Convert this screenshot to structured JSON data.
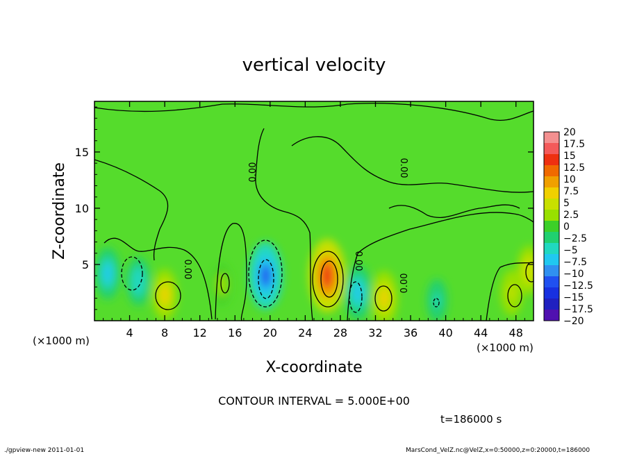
{
  "chart_data": {
    "type": "heatmap",
    "title": "vertical velocity",
    "xlabel": "X-coordinate",
    "ylabel": "Z-coordinate",
    "x_unit_left": "(×1000 m)",
    "x_unit_right": "(×1000 m)",
    "xlim": [
      0,
      50
    ],
    "ylim": [
      0,
      19.5
    ],
    "x_ticks": [
      4,
      8,
      12,
      16,
      20,
      24,
      28,
      32,
      36,
      40,
      44,
      48
    ],
    "y_ticks": [
      5,
      10,
      15
    ],
    "colorbar": {
      "range": [
        -20,
        20
      ],
      "levels": [
        "20",
        "17.5",
        "15",
        "12.5",
        "10",
        "7.5",
        "5",
        "2.5",
        "0",
        "−2.5",
        "−5",
        "−7.5",
        "−10",
        "−12.5",
        "−15",
        "−17.5",
        "−20"
      ],
      "colors": [
        "#f49090",
        "#f45a5a",
        "#ee3010",
        "#f06a00",
        "#f0a000",
        "#f0d000",
        "#c8e000",
        "#98e000",
        "#3cd028",
        "#20d070",
        "#20d8c0",
        "#20c8f0",
        "#3090f0",
        "#2050f0",
        "#1830e0",
        "#2020c0",
        "#5010b0"
      ]
    },
    "contour_labels": [
      "0.00",
      "0.00",
      "0.00",
      "0.00",
      "0.00"
    ],
    "cells": [
      {
        "x": 1.5,
        "z": 4.2,
        "w": -7
      },
      {
        "x": 5.0,
        "z": 3.5,
        "w": -6
      },
      {
        "x": 8.0,
        "z": 2.3,
        "w": 7
      },
      {
        "x": 14.5,
        "z": 3.2,
        "w": 3
      },
      {
        "x": 19.5,
        "z": 4.0,
        "w": -12
      },
      {
        "x": 26.5,
        "z": 4.0,
        "w": 14
      },
      {
        "x": 30.0,
        "z": 2.5,
        "w": -8
      },
      {
        "x": 33.0,
        "z": 2.0,
        "w": 8
      },
      {
        "x": 39.0,
        "z": 1.8,
        "w": -4
      },
      {
        "x": 47.5,
        "z": 2.5,
        "w": 5
      },
      {
        "x": 49.5,
        "z": 4.5,
        "w": 6
      }
    ],
    "contour_interval_text": "CONTOUR INTERVAL = 5.000E+00",
    "time_text": "t=186000 s"
  },
  "footer": {
    "left": "./gpview-new   2011-01-01",
    "right": "MarsCond_VelZ.nc@VelZ,x=0:50000,z=0:20000,t=186000"
  }
}
